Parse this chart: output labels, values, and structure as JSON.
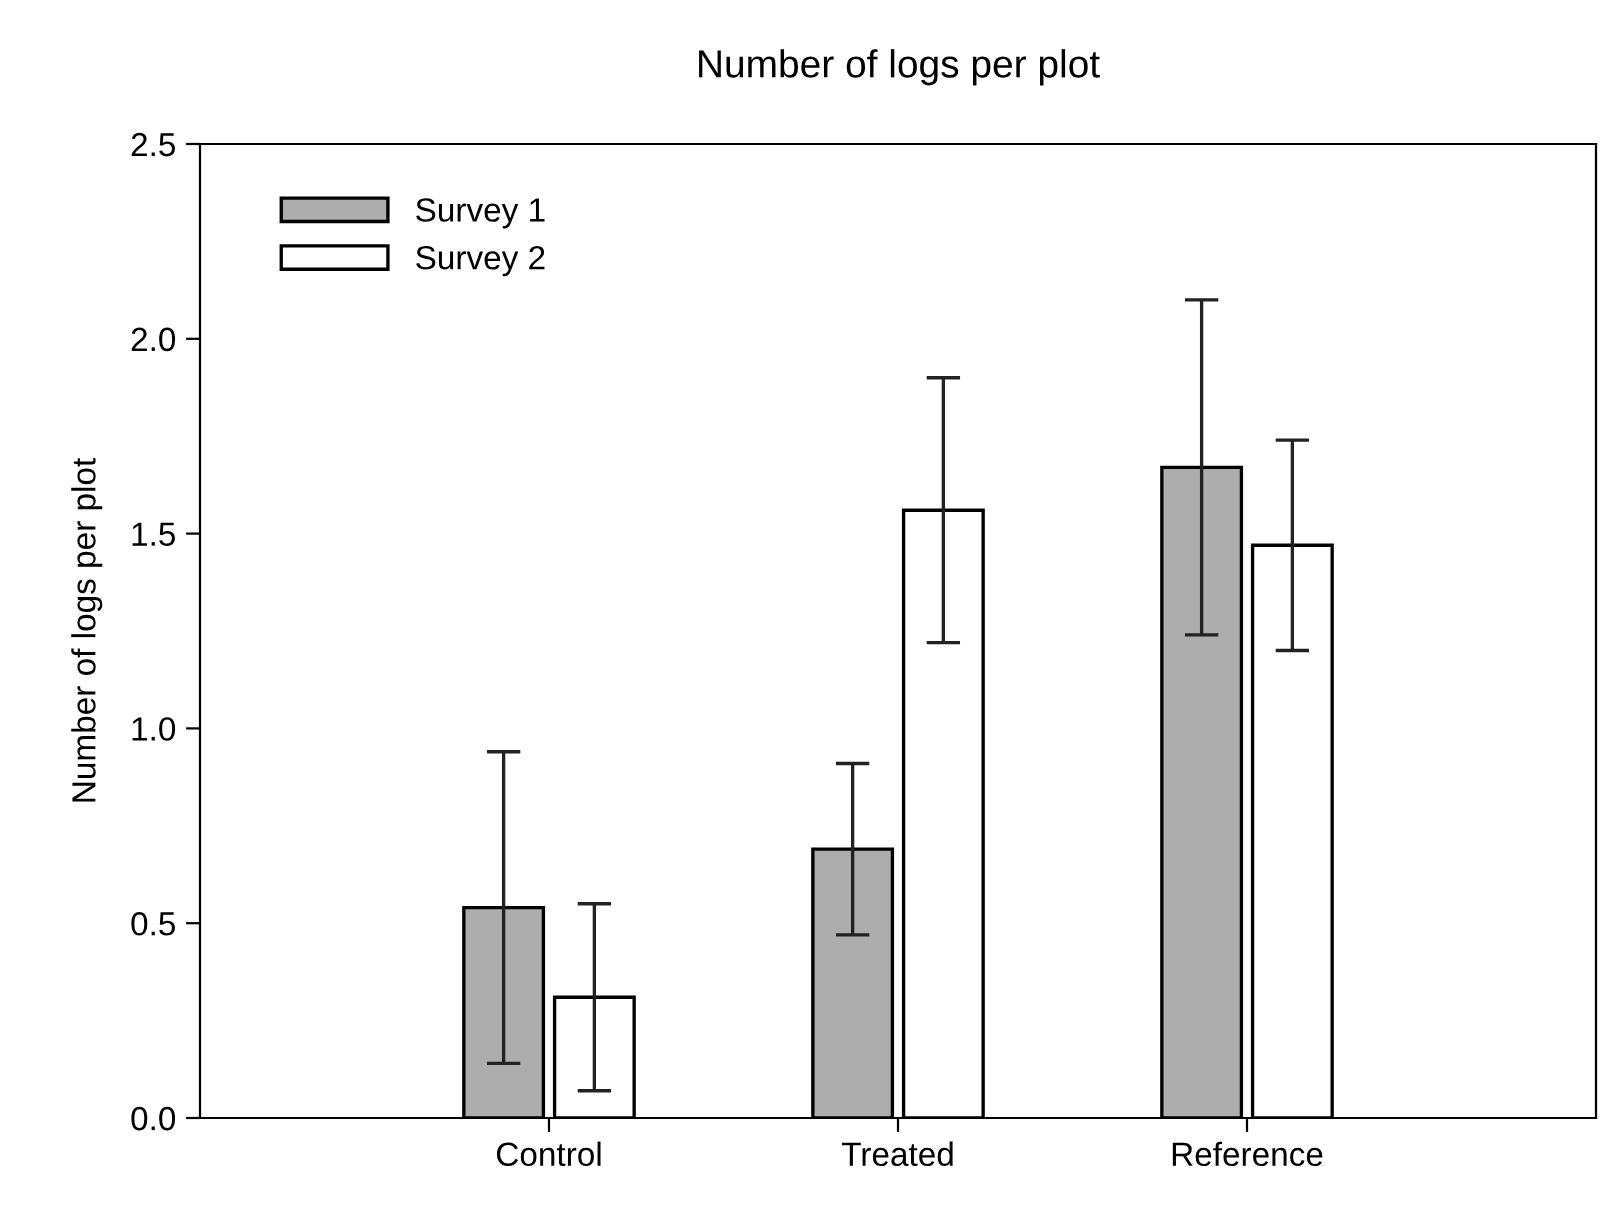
{
  "chart_data": {
    "type": "bar",
    "title": "Number of logs per plot",
    "ylabel": "Number of logs per plot",
    "categories": [
      "Control",
      "Treated",
      "Reference"
    ],
    "series": [
      {
        "name": "Survey 1",
        "color": "#adadad",
        "values": [
          0.54,
          0.69,
          1.67
        ],
        "errors": [
          0.4,
          0.22,
          0.43
        ]
      },
      {
        "name": "Survey 2",
        "color": "#ffffff",
        "values": [
          0.31,
          1.56,
          1.47
        ],
        "errors": [
          0.24,
          0.34,
          0.27
        ]
      }
    ],
    "ylim": [
      0,
      2.5
    ],
    "yticks": [
      {
        "value": 0,
        "label": "0.0"
      },
      {
        "value": 0.5,
        "label": "0.5"
      },
      {
        "value": 1,
        "label": "1.0"
      },
      {
        "value": 1.5,
        "label": "1.5"
      },
      {
        "value": 2,
        "label": "2.0"
      },
      {
        "value": 2.5,
        "label": "2.5"
      }
    ],
    "grid": false,
    "legend": "top left"
  }
}
